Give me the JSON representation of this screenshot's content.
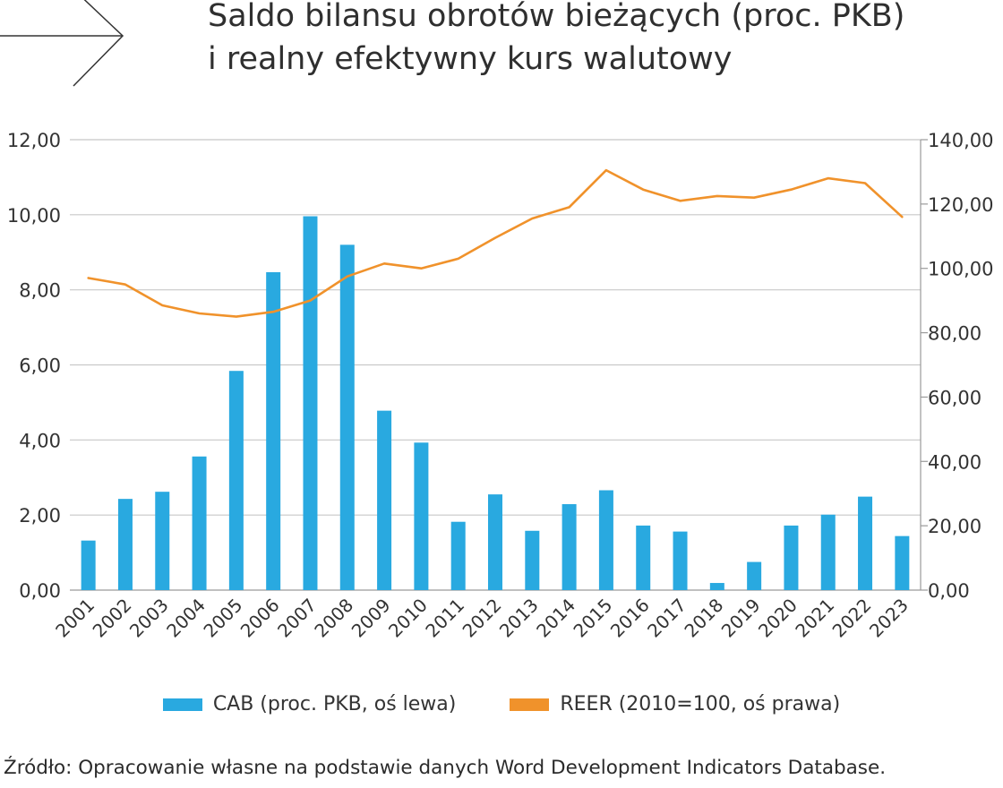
{
  "title": {
    "line1": "Saldo bilansu obrotów bieżących (proc. PKB)",
    "line2": "i realny efektywny kurs walutowy"
  },
  "source": "Źródło: Opracowanie własne na podstawie danych Word Development Indicators Database.",
  "colors": {
    "bar": "#29a9e0",
    "line": "#f0922b",
    "grid": "#c8c8c8",
    "axis": "#9a9a9a"
  },
  "decoration": "arrow-right-icon",
  "chart_data": {
    "type": "bar",
    "title": "",
    "xlabel": "",
    "ylabel": "",
    "categories": [
      "2001",
      "2002",
      "2003",
      "2004",
      "2005",
      "2006",
      "2007",
      "2008",
      "2009",
      "2010",
      "2011",
      "2012",
      "2013",
      "2014",
      "2015",
      "2016",
      "2017",
      "2018",
      "2019",
      "2020",
      "2021",
      "2022",
      "2023"
    ],
    "left_axis": {
      "ylim": [
        0,
        12
      ],
      "ticks": [
        "12,00",
        "10,00",
        "8,00",
        "6,00",
        "4,00",
        "2,00",
        "0,00"
      ]
    },
    "right_axis": {
      "ylim": [
        0,
        140
      ],
      "ticks": [
        "140,00",
        "120,00",
        "100,00",
        "80,00",
        "60,00",
        "40,00",
        "20,00",
        "0,00"
      ]
    },
    "grid": true,
    "legend_position": "bottom",
    "series": [
      {
        "name": "CAB (proc. PKB, oś lewa)",
        "type": "bar",
        "axis": "left",
        "values": [
          1.32,
          2.43,
          2.62,
          3.56,
          5.84,
          8.47,
          9.96,
          9.2,
          4.78,
          3.93,
          1.82,
          2.55,
          1.58,
          2.29,
          2.66,
          1.72,
          1.56,
          0.19,
          0.75,
          1.72,
          2.01,
          2.49,
          1.44
        ]
      },
      {
        "name": "REER (2010=100, oś prawa)",
        "type": "line",
        "axis": "right",
        "values": [
          97.0,
          95.0,
          88.5,
          86.0,
          85.0,
          86.5,
          90.0,
          97.5,
          101.5,
          100.0,
          103.0,
          109.5,
          115.5,
          119.0,
          130.5,
          124.5,
          121.0,
          122.5,
          122.0,
          124.5,
          128.0,
          126.5,
          116.0
        ]
      }
    ]
  }
}
